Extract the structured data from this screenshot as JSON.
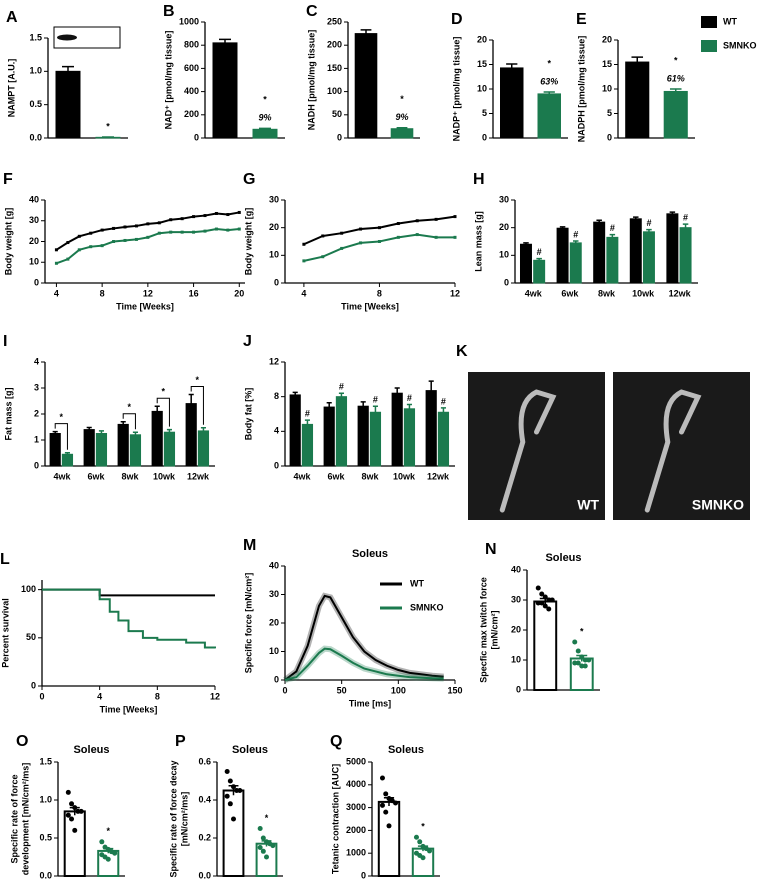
{
  "chart_data": [
    {
      "type": "bar",
      "panel": "A",
      "ylabel": "NAMPT [A.U.]",
      "ylim": [
        0,
        1.5
      ],
      "yticks": [
        {
          "value": 0,
          "label": "0.0"
        },
        0.5,
        {
          "value": 1,
          "label": "1.0"
        },
        1.5
      ],
      "series": [
        {
          "name": "WT",
          "color": "#000000",
          "values": [
            1.0
          ],
          "errors": [
            0.07
          ]
        },
        {
          "name": "SMNKO",
          "color": "#1b7a4e",
          "values": [
            0.01
          ],
          "errors": [
            0.005
          ]
        }
      ],
      "annotations": [
        "*"
      ]
    },
    {
      "type": "bar",
      "panel": "B",
      "ylabel": "NAD⁺ [pmol/mg tissue]",
      "ylim": [
        0,
        1000
      ],
      "yticks": [
        0,
        200,
        400,
        600,
        800,
        1000
      ],
      "series": [
        {
          "name": "WT",
          "color": "#000000",
          "values": [
            820
          ],
          "errors": [
            30
          ]
        },
        {
          "name": "SMNKO",
          "color": "#1b7a4e",
          "values": [
            75
          ],
          "errors": [
            8
          ]
        }
      ],
      "annotations": [
        "*",
        "9%"
      ]
    },
    {
      "type": "bar",
      "panel": "C",
      "ylabel": "NADH [pmol/mg tissue]",
      "ylim": [
        0,
        250
      ],
      "yticks": [
        0,
        50,
        100,
        150,
        200,
        250
      ],
      "series": [
        {
          "name": "WT",
          "color": "#000000",
          "values": [
            225
          ],
          "errors": [
            8
          ]
        },
        {
          "name": "SMNKO",
          "color": "#1b7a4e",
          "values": [
            20
          ],
          "errors": [
            2
          ]
        }
      ],
      "annotations": [
        "*",
        "9%"
      ]
    },
    {
      "type": "bar",
      "panel": "D",
      "ylabel": "NADP⁺ [pmol/mg tissue]",
      "ylim": [
        0,
        20
      ],
      "yticks": [
        0,
        5,
        10,
        15,
        20
      ],
      "series": [
        {
          "name": "WT",
          "color": "#000000",
          "values": [
            14.3
          ],
          "errors": [
            0.8
          ]
        },
        {
          "name": "SMNKO",
          "color": "#1b7a4e",
          "values": [
            9.0
          ],
          "errors": [
            0.4
          ]
        }
      ],
      "annotations": [
        "*",
        "63%"
      ]
    },
    {
      "type": "bar",
      "panel": "E",
      "ylabel": "NADPH [pmol/mg tissue]",
      "ylim": [
        0,
        20
      ],
      "yticks": [
        0,
        5,
        10,
        15,
        20
      ],
      "legend": "outside-right",
      "series": [
        {
          "name": "WT",
          "color": "#000000",
          "values": [
            15.5
          ],
          "errors": [
            1.0
          ]
        },
        {
          "name": "SMNKO",
          "color": "#1b7a4e",
          "values": [
            9.5
          ],
          "errors": [
            0.5
          ]
        }
      ],
      "annotations": [
        "*",
        "61%"
      ]
    },
    {
      "type": "line",
      "panel": "F",
      "ylabel": "Body weight [g]",
      "xlabel": "Time [Weeks]",
      "xlim": [
        3,
        20.5
      ],
      "xticks": [
        4,
        8,
        12,
        16,
        20
      ],
      "ylim": [
        0,
        40
      ],
      "yticks": [
        0,
        10,
        20,
        30,
        40
      ],
      "x": [
        4,
        5,
        6,
        7,
        8,
        9,
        10,
        11,
        12,
        13,
        14,
        15,
        16,
        17,
        18,
        19,
        20
      ],
      "series": [
        {
          "name": "WT",
          "color": "#000000",
          "values": [
            16,
            19.5,
            22.5,
            24,
            25.5,
            26.3,
            27,
            27.5,
            28.5,
            29,
            30.5,
            31,
            32,
            32.5,
            33.5,
            33,
            34
          ]
        },
        {
          "name": "SMNKO",
          "color": "#1b7a4e",
          "values": [
            9.5,
            11.5,
            16,
            17.5,
            18,
            20,
            20.5,
            21,
            22,
            24,
            24.5,
            24.5,
            24.5,
            25,
            26,
            25.5,
            26
          ]
        }
      ]
    },
    {
      "type": "line",
      "panel": "G",
      "ylabel": "Body weight [g]",
      "xlabel": "Time [Weeks]",
      "xlim": [
        3,
        12
      ],
      "xticks": [
        4,
        8,
        12
      ],
      "ylim": [
        0,
        30
      ],
      "yticks": [
        0,
        10,
        20,
        30
      ],
      "x": [
        4,
        5,
        6,
        7,
        8,
        9,
        10,
        11,
        12
      ],
      "series": [
        {
          "name": "WT",
          "color": "#000000",
          "values": [
            14,
            17,
            18,
            19.5,
            20,
            21.5,
            22.5,
            23,
            24
          ]
        },
        {
          "name": "SMNKO",
          "color": "#1b7a4e",
          "values": [
            8,
            9.5,
            12.5,
            14.5,
            15,
            16.5,
            17.5,
            16.5,
            16.5
          ]
        }
      ]
    },
    {
      "type": "bar",
      "panel": "H",
      "ylabel": "Lean mass [g]",
      "ylim": [
        0,
        30
      ],
      "yticks": [
        0,
        10,
        20,
        30
      ],
      "categories": [
        "4wk",
        "6wk",
        "8wk",
        "10wk",
        "12wk"
      ],
      "series": [
        {
          "name": "WT",
          "color": "#000000",
          "values": [
            14,
            19.8,
            22,
            23.2,
            25
          ],
          "errors": [
            0.5,
            0.5,
            0.7,
            0.6,
            0.6
          ]
        },
        {
          "name": "SMNKO",
          "color": "#1b7a4e",
          "values": [
            8.2,
            14.5,
            16.5,
            18.5,
            20
          ],
          "errors": [
            0.6,
            0.7,
            1.0,
            0.8,
            1.3
          ]
        }
      ],
      "annotations": [
        "#",
        "#",
        "#",
        "#",
        "#"
      ]
    },
    {
      "type": "bar",
      "panel": "I",
      "ylabel": "Fat mass [g]",
      "ylim": [
        0,
        4
      ],
      "yticks": [
        0,
        1,
        2,
        3,
        4
      ],
      "categories": [
        "4wk",
        "6wk",
        "8wk",
        "10wk",
        "12wk"
      ],
      "brackets": true,
      "series": [
        {
          "name": "WT",
          "color": "#000000",
          "values": [
            1.25,
            1.4,
            1.6,
            2.1,
            2.4
          ],
          "errors": [
            0.07,
            0.08,
            0.1,
            0.2,
            0.35
          ]
        },
        {
          "name": "SMNKO",
          "color": "#1b7a4e",
          "values": [
            0.45,
            1.25,
            1.2,
            1.3,
            1.35
          ],
          "errors": [
            0.06,
            0.1,
            0.1,
            0.1,
            0.12
          ]
        }
      ],
      "annotations": [
        "*",
        null,
        "*",
        "*",
        "*"
      ]
    },
    {
      "type": "bar",
      "panel": "J",
      "ylabel": "Body fat [%]",
      "ylim": [
        0,
        12
      ],
      "yticks": [
        0,
        4,
        8,
        12
      ],
      "categories": [
        "4wk",
        "6wk",
        "8wk",
        "10wk",
        "12wk"
      ],
      "series": [
        {
          "name": "WT",
          "color": "#000000",
          "values": [
            8.2,
            6.8,
            6.9,
            8.4,
            8.7
          ],
          "errors": [
            0.3,
            0.5,
            0.5,
            0.6,
            1.1
          ]
        },
        {
          "name": "SMNKO",
          "color": "#1b7a4e",
          "values": [
            4.8,
            8.0,
            6.2,
            6.6,
            6.2
          ],
          "errors": [
            0.5,
            0.4,
            0.7,
            0.5,
            0.5
          ]
        }
      ],
      "annotations": [
        "#",
        "#",
        "#",
        "#",
        "#"
      ]
    },
    {
      "type": "image",
      "panel": "K",
      "labels": [
        "WT",
        "SMNKO"
      ]
    },
    {
      "type": "step",
      "panel": "L",
      "ylabel": "Percent survival",
      "xlabel": "Time [Weeks]",
      "xlim": [
        0,
        12
      ],
      "xticks": [
        0,
        4,
        8,
        12
      ],
      "ylim": [
        0,
        110
      ],
      "yticks": [
        0,
        50,
        100
      ],
      "series": [
        {
          "name": "WT",
          "color": "#000000",
          "x": [
            0,
            4,
            12
          ],
          "values": [
            100,
            94,
            94
          ]
        },
        {
          "name": "SMNKO",
          "color": "#1b7a4e",
          "x": [
            0,
            4,
            4.7,
            5.3,
            6,
            7,
            8,
            10,
            11.3,
            12
          ],
          "values": [
            100,
            90,
            77,
            68,
            57,
            50,
            48,
            45,
            40,
            39
          ]
        }
      ]
    },
    {
      "type": "line",
      "panel": "M",
      "title": "Soleus",
      "ylabel": "Specific force [mN/cm²]",
      "xlabel": "Time [ms]",
      "xlim": [
        0,
        150
      ],
      "xticks": [
        0,
        50,
        100,
        150
      ],
      "ylim": [
        0,
        40
      ],
      "yticks": [
        0,
        10,
        20,
        30,
        40
      ],
      "legend": "upper-right",
      "band": true,
      "x": [
        0,
        10,
        20,
        30,
        35,
        40,
        50,
        60,
        70,
        80,
        90,
        100,
        110,
        120,
        130,
        140
      ],
      "series": [
        {
          "name": "WT",
          "color": "#000000",
          "values": [
            0,
            3,
            12,
            26,
            29.5,
            29,
            22,
            15,
            10,
            7,
            5,
            3.5,
            2.5,
            2,
            1.5,
            1.2
          ]
        },
        {
          "name": "SMNKO",
          "color": "#1b7a4e",
          "values": [
            0,
            1,
            5,
            9.5,
            11,
            10.8,
            8.5,
            6,
            4,
            3,
            2,
            1.5,
            1,
            0.8,
            0.6,
            0.5
          ]
        }
      ]
    },
    {
      "type": "bar",
      "panel": "N",
      "title": "Soleus",
      "ylabel": [
        "Specfic max twitch force",
        "[mN/cm²]"
      ],
      "ylim": [
        0,
        40
      ],
      "yticks": [
        0,
        10,
        20,
        30,
        40
      ],
      "style": "open",
      "series": [
        {
          "name": "WT",
          "color": "#000000",
          "values": [
            29.5
          ],
          "errors": [
            1.0
          ],
          "points": [
            34,
            32,
            31,
            30,
            30,
            29,
            29,
            28,
            27
          ]
        },
        {
          "name": "SMNKO",
          "color": "#1b7a4e",
          "values": [
            10.5
          ],
          "errors": [
            1.0
          ],
          "points": [
            16,
            13,
            11,
            10,
            10,
            9,
            9,
            8,
            8
          ]
        }
      ],
      "annotations": [
        "*"
      ]
    },
    {
      "type": "bar",
      "panel": "O",
      "title": "Soleus",
      "ylabel": [
        "Specific rate of force",
        "development [mN/cm²/ms]"
      ],
      "ylim": [
        0,
        1.5
      ],
      "yticks": [
        {
          "value": 0,
          "label": "0.0"
        },
        0.5,
        {
          "value": 1,
          "label": "1.0"
        },
        1.5
      ],
      "style": "open",
      "series": [
        {
          "name": "WT",
          "color": "#000000",
          "values": [
            0.85
          ],
          "errors": [
            0.05
          ],
          "points": [
            1.1,
            0.95,
            0.9,
            0.85,
            0.85,
            0.8,
            0.75,
            0.6
          ]
        },
        {
          "name": "SMNKO",
          "color": "#1b7a4e",
          "values": [
            0.33
          ],
          "errors": [
            0.03
          ],
          "points": [
            0.45,
            0.38,
            0.35,
            0.32,
            0.3,
            0.28,
            0.25,
            0.22
          ]
        }
      ],
      "annotations": [
        "*"
      ]
    },
    {
      "type": "bar",
      "panel": "P",
      "title": "Soleus",
      "ylabel": [
        "Specific rate of force decay",
        "[mN/cm²/ms]"
      ],
      "ylim": [
        0,
        0.6
      ],
      "yticks": [
        {
          "value": 0,
          "label": "0.0"
        },
        0.2,
        0.4,
        0.6
      ],
      "style": "open",
      "series": [
        {
          "name": "WT",
          "color": "#000000",
          "values": [
            0.45
          ],
          "errors": [
            0.025
          ],
          "points": [
            0.55,
            0.5,
            0.47,
            0.45,
            0.45,
            0.42,
            0.38,
            0.3
          ]
        },
        {
          "name": "SMNKO",
          "color": "#1b7a4e",
          "values": [
            0.17
          ],
          "errors": [
            0.015
          ],
          "points": [
            0.25,
            0.2,
            0.18,
            0.17,
            0.16,
            0.15,
            0.13,
            0.1
          ]
        }
      ],
      "annotations": [
        "*"
      ]
    },
    {
      "type": "bar",
      "panel": "Q",
      "title": "Soleus",
      "ylabel": "Tetanic contraction [AUC]",
      "ylim": [
        0,
        5000
      ],
      "yticks": [
        0,
        1000,
        2000,
        3000,
        4000,
        5000
      ],
      "style": "open",
      "series": [
        {
          "name": "WT",
          "color": "#000000",
          "values": [
            3250
          ],
          "errors": [
            180
          ],
          "points": [
            4300,
            3600,
            3400,
            3300,
            3200,
            3100,
            2800,
            2200
          ]
        },
        {
          "name": "SMNKO",
          "color": "#1b7a4e",
          "values": [
            1200
          ],
          "errors": [
            110
          ],
          "points": [
            1700,
            1500,
            1300,
            1200,
            1100,
            1000,
            900,
            800
          ]
        }
      ],
      "annotations": [
        "*"
      ]
    }
  ]
}
